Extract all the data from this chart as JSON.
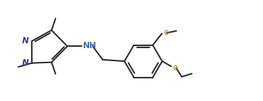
{
  "background_color": "#ffffff",
  "line_color": "#2a2a2a",
  "line_width": 1.5,
  "text_color": "#2a2a2a",
  "nh_color": "#4466aa",
  "o_color": "#b87020",
  "font_size": 8.5,
  "fig_width": 3.8,
  "fig_height": 1.47,
  "dpi": 100,
  "xlim": [
    0,
    10
  ],
  "ylim": [
    0,
    3.87
  ]
}
